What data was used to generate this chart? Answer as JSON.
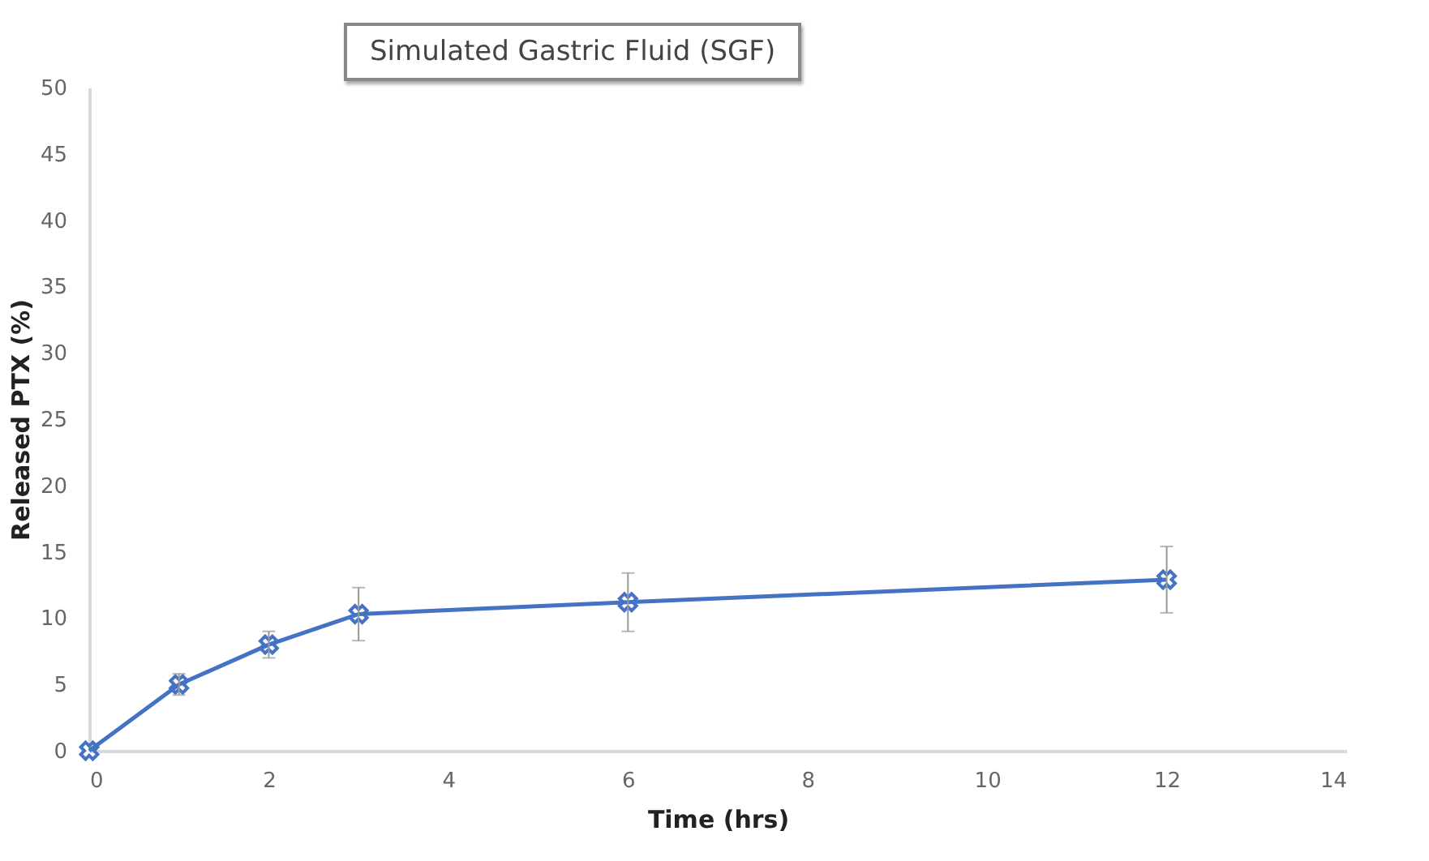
{
  "chart_data": {
    "type": "line",
    "title": "Simulated Gastric Fluid (SGF)",
    "xlabel": "Time (hrs)",
    "ylabel": "Released PTX (%)",
    "x": [
      0,
      1,
      2,
      3,
      6,
      12
    ],
    "series": [
      {
        "color": "#4472c4",
        "values": [
          0,
          5,
          8,
          10.3,
          11.2,
          12.9
        ],
        "errors": [
          null,
          0.8,
          1,
          2,
          2.2,
          2.5
        ]
      }
    ],
    "xlim": [
      0,
      14
    ],
    "xticks": [
      0,
      2,
      4,
      6,
      8,
      10,
      12,
      14
    ],
    "ylim": [
      0,
      50
    ],
    "yticks": [
      0,
      5,
      10,
      15,
      20,
      25,
      30,
      35,
      40,
      45,
      50
    ],
    "marker": "cross",
    "grid": false
  }
}
